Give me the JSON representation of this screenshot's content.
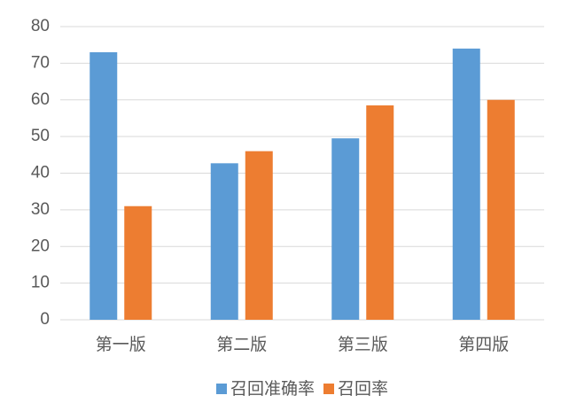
{
  "chart_data": {
    "type": "bar",
    "categories": [
      "第一版",
      "第二版",
      "第三版",
      "第四版"
    ],
    "series": [
      {
        "name": "召回准确率",
        "color": "#5b9bd5",
        "values": [
          73,
          42.7,
          49.5,
          74
        ]
      },
      {
        "name": "召回率",
        "color": "#ed7d31",
        "values": [
          31,
          46,
          58.5,
          60
        ]
      }
    ],
    "ylim": [
      0,
      80
    ],
    "yticks": [
      0,
      10,
      20,
      30,
      40,
      50,
      60,
      70,
      80
    ],
    "grid": true,
    "legend": "bottom"
  }
}
